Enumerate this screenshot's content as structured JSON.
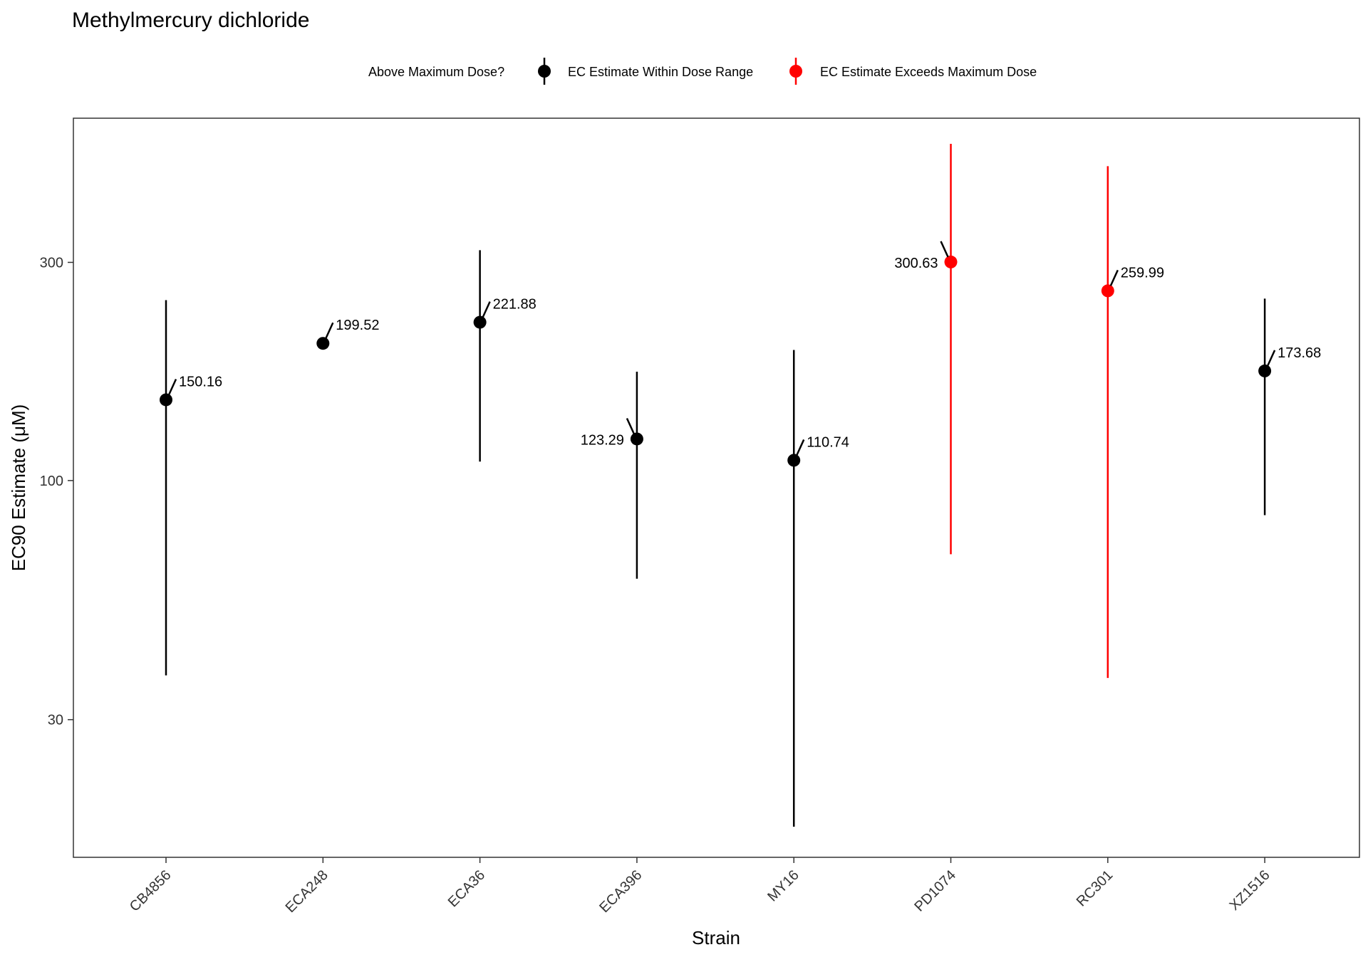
{
  "chart_data": {
    "type": "scatter",
    "title": "Methylmercury dichloride",
    "xlabel": "Strain",
    "ylabel": "EC90 Estimate (μM)",
    "y_scale": "log",
    "ylim": [
      15,
      620
    ],
    "y_ticks": [
      30,
      100,
      300
    ],
    "y_tick_labels": [
      "30",
      "100",
      "300"
    ],
    "grid": false,
    "legend": {
      "title": "Above Maximum Dose?",
      "position": "top",
      "entries": [
        {
          "label": "EC Estimate Within Dose Range",
          "color": "#000000"
        },
        {
          "label": "EC Estimate Exceeds Maximum Dose",
          "color": "#ff0000"
        }
      ]
    },
    "categories": [
      "CB4856",
      "ECA248",
      "ECA36",
      "ECA396",
      "MY16",
      "PD1074",
      "RC301",
      "XZ1516"
    ],
    "points": [
      {
        "strain": "CB4856",
        "value": 150.16,
        "label": "150.16",
        "lower": 37.5,
        "upper": 248,
        "exceeds": false,
        "label_side": "right"
      },
      {
        "strain": "ECA248",
        "value": 199.52,
        "label": "199.52",
        "lower": null,
        "upper": null,
        "exceeds": false,
        "label_side": "right"
      },
      {
        "strain": "ECA36",
        "value": 221.88,
        "label": "221.88",
        "lower": 110,
        "upper": 319,
        "exceeds": false,
        "label_side": "right"
      },
      {
        "strain": "ECA396",
        "value": 123.29,
        "label": "123.29",
        "lower": 61,
        "upper": 173,
        "exceeds": false,
        "label_side": "left"
      },
      {
        "strain": "MY16",
        "value": 110.74,
        "label": "110.74",
        "lower": 17.5,
        "upper": 193,
        "exceeds": false,
        "label_side": "right"
      },
      {
        "strain": "PD1074",
        "value": 300.63,
        "label": "300.63",
        "lower": 69,
        "upper": 545,
        "exceeds": true,
        "label_side": "left"
      },
      {
        "strain": "RC301",
        "value": 259.99,
        "label": "259.99",
        "lower": 37,
        "upper": 487,
        "exceeds": true,
        "label_side": "right"
      },
      {
        "strain": "XZ1516",
        "value": 173.68,
        "label": "173.68",
        "lower": 84,
        "upper": 250,
        "exceeds": false,
        "label_side": "right"
      }
    ]
  }
}
